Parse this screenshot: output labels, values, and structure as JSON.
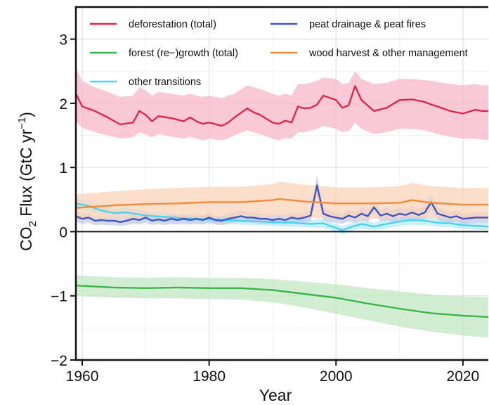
{
  "chart_data": {
    "type": "line",
    "xlabel": "Year",
    "ylabel": "CO2 Flux (GtC yr-1)",
    "ylabel_parts": {
      "pre": "CO",
      "sub": "2",
      "mid": " Flux (GtC yr",
      "sup": "−1",
      "post": ")"
    },
    "xlim": [
      1959,
      2024
    ],
    "ylim": [
      -2,
      3.5
    ],
    "x_ticks": [
      1960,
      1980,
      2000,
      2020
    ],
    "y_ticks": [
      3,
      2,
      1,
      0,
      -1,
      -2
    ],
    "y_tick_labels": [
      "3",
      "2",
      "1",
      "0",
      "−1",
      "−2"
    ],
    "grid": true,
    "legend_position": "top",
    "zero_line": true,
    "series": [
      {
        "name": "deforestation (total)",
        "color": "#e0254f",
        "band_color": "#f7b5c6",
        "x": [
          1959,
          1960,
          1962,
          1964,
          1966,
          1968,
          1969,
          1970,
          1971,
          1972,
          1974,
          1976,
          1977,
          1978,
          1979,
          1980,
          1982,
          1983,
          1984,
          1986,
          1987,
          1988,
          1990,
          1991,
          1992,
          1993,
          1994,
          1995,
          1996,
          1997,
          1998,
          2000,
          2001,
          2002,
          2003,
          2004,
          2006,
          2008,
          2010,
          2012,
          2014,
          2015,
          2016,
          2018,
          2020,
          2022,
          2023,
          2024
        ],
        "values": [
          2.15,
          1.95,
          1.88,
          1.78,
          1.67,
          1.7,
          1.88,
          1.82,
          1.72,
          1.8,
          1.77,
          1.72,
          1.78,
          1.72,
          1.68,
          1.7,
          1.65,
          1.7,
          1.78,
          1.92,
          1.86,
          1.82,
          1.7,
          1.68,
          1.73,
          1.7,
          1.95,
          1.92,
          1.93,
          1.98,
          2.12,
          2.05,
          1.93,
          1.97,
          2.27,
          2.05,
          1.88,
          1.93,
          2.05,
          2.06,
          2.02,
          1.98,
          1.95,
          1.88,
          1.84,
          1.9,
          1.88,
          1.88
        ],
        "lower": [
          1.72,
          1.62,
          1.55,
          1.5,
          1.45,
          1.47,
          1.55,
          1.52,
          1.47,
          1.52,
          1.48,
          1.45,
          1.48,
          1.45,
          1.42,
          1.45,
          1.42,
          1.45,
          1.5,
          1.58,
          1.55,
          1.52,
          1.45,
          1.42,
          1.46,
          1.45,
          1.55,
          1.55,
          1.57,
          1.6,
          1.65,
          1.6,
          1.55,
          1.57,
          1.7,
          1.6,
          1.52,
          1.55,
          1.6,
          1.6,
          1.58,
          1.55,
          1.52,
          1.48,
          1.45,
          1.45,
          1.43,
          1.43
        ],
        "upper": [
          2.55,
          2.35,
          2.25,
          2.18,
          2.1,
          2.12,
          2.25,
          2.2,
          2.12,
          2.18,
          2.15,
          2.12,
          2.15,
          2.12,
          2.1,
          2.12,
          2.08,
          2.12,
          2.15,
          2.28,
          2.25,
          2.22,
          2.15,
          2.12,
          2.15,
          2.12,
          2.3,
          2.3,
          2.32,
          2.35,
          2.4,
          2.38,
          2.3,
          2.32,
          2.5,
          2.38,
          2.3,
          2.32,
          2.38,
          2.38,
          2.36,
          2.35,
          2.33,
          2.3,
          2.28,
          2.3,
          2.28,
          2.28
        ]
      },
      {
        "name": "forest (re−)growth (total)",
        "color": "#3bb54a",
        "band_color": "#bfe6c1",
        "x": [
          1959,
          1965,
          1970,
          1975,
          1980,
          1985,
          1990,
          1995,
          2000,
          2005,
          2010,
          2015,
          2020,
          2024
        ],
        "values": [
          -0.84,
          -0.87,
          -0.88,
          -0.87,
          -0.88,
          -0.88,
          -0.91,
          -0.97,
          -1.03,
          -1.12,
          -1.2,
          -1.27,
          -1.31,
          -1.33
        ],
        "lower": [
          -1.0,
          -1.03,
          -1.04,
          -1.04,
          -1.05,
          -1.06,
          -1.1,
          -1.18,
          -1.28,
          -1.38,
          -1.48,
          -1.56,
          -1.62,
          -1.65
        ],
        "upper": [
          -0.68,
          -0.71,
          -0.72,
          -0.71,
          -0.72,
          -0.72,
          -0.74,
          -0.78,
          -0.82,
          -0.88,
          -0.93,
          -0.98,
          -1.01,
          -1.02
        ]
      },
      {
        "name": "other transitions",
        "color": "#4fd0ee",
        "band_color": "#b3ebf8",
        "x": [
          1959,
          1961,
          1963,
          1965,
          1967,
          1970,
          1973,
          1976,
          1980,
          1985,
          1990,
          1993,
          1996,
          1998,
          1999,
          2000,
          2001,
          2002,
          2004,
          2006,
          2008,
          2010,
          2012,
          2014,
          2016,
          2018,
          2020,
          2022,
          2024
        ],
        "values": [
          0.44,
          0.4,
          0.33,
          0.29,
          0.3,
          0.25,
          0.23,
          0.21,
          0.19,
          0.17,
          0.15,
          0.14,
          0.12,
          0.13,
          0.09,
          0.06,
          0.02,
          0.06,
          0.12,
          0.08,
          0.12,
          0.16,
          0.18,
          0.17,
          0.14,
          0.13,
          0.1,
          0.09,
          0.08
        ],
        "lower": [
          0.36,
          0.32,
          0.26,
          0.22,
          0.23,
          0.19,
          0.17,
          0.15,
          0.13,
          0.11,
          0.09,
          0.08,
          0.06,
          0.06,
          0.03,
          0.0,
          -0.04,
          0.0,
          0.05,
          0.02,
          0.05,
          0.09,
          0.11,
          0.1,
          0.08,
          0.07,
          0.04,
          0.03,
          0.02
        ],
        "upper": [
          0.52,
          0.48,
          0.4,
          0.36,
          0.37,
          0.31,
          0.29,
          0.27,
          0.25,
          0.23,
          0.21,
          0.2,
          0.18,
          0.2,
          0.15,
          0.12,
          0.08,
          0.12,
          0.19,
          0.14,
          0.19,
          0.23,
          0.25,
          0.24,
          0.2,
          0.19,
          0.16,
          0.15,
          0.14
        ]
      },
      {
        "name": "peat drainage & peat fires",
        "color": "#4055c4",
        "band_color": "#c4c9e6",
        "x": [
          1959,
          1960,
          1961,
          1962,
          1963,
          1964,
          1965,
          1966,
          1967,
          1968,
          1969,
          1970,
          1971,
          1972,
          1973,
          1974,
          1975,
          1976,
          1977,
          1978,
          1979,
          1980,
          1981,
          1982,
          1983,
          1984,
          1985,
          1986,
          1987,
          1988,
          1989,
          1990,
          1991,
          1992,
          1993,
          1994,
          1995,
          1996,
          1997,
          1998,
          1999,
          2000,
          2001,
          2002,
          2003,
          2004,
          2005,
          2006,
          2007,
          2008,
          2009,
          2010,
          2011,
          2012,
          2013,
          2014,
          2015,
          2016,
          2017,
          2018,
          2019,
          2020,
          2021,
          2022,
          2023,
          2024
        ],
        "values": [
          0.24,
          0.2,
          0.22,
          0.17,
          0.18,
          0.17,
          0.17,
          0.15,
          0.17,
          0.2,
          0.18,
          0.22,
          0.17,
          0.19,
          0.17,
          0.2,
          0.18,
          0.2,
          0.18,
          0.2,
          0.18,
          0.22,
          0.18,
          0.17,
          0.2,
          0.22,
          0.24,
          0.22,
          0.22,
          0.2,
          0.2,
          0.18,
          0.2,
          0.18,
          0.22,
          0.2,
          0.22,
          0.25,
          0.72,
          0.28,
          0.24,
          0.22,
          0.2,
          0.25,
          0.22,
          0.28,
          0.24,
          0.38,
          0.25,
          0.28,
          0.24,
          0.28,
          0.26,
          0.3,
          0.26,
          0.3,
          0.46,
          0.28,
          0.25,
          0.22,
          0.24,
          0.2,
          0.21,
          0.22,
          0.22,
          0.22
        ],
        "lower": [
          0.15,
          0.12,
          0.14,
          0.1,
          0.11,
          0.1,
          0.1,
          0.09,
          0.1,
          0.12,
          0.11,
          0.14,
          0.1,
          0.12,
          0.1,
          0.12,
          0.11,
          0.12,
          0.11,
          0.12,
          0.11,
          0.14,
          0.11,
          0.1,
          0.12,
          0.14,
          0.15,
          0.14,
          0.14,
          0.12,
          0.12,
          0.11,
          0.12,
          0.11,
          0.14,
          0.12,
          0.14,
          0.16,
          0.55,
          0.18,
          0.15,
          0.14,
          0.12,
          0.16,
          0.14,
          0.18,
          0.15,
          0.28,
          0.16,
          0.18,
          0.15,
          0.18,
          0.17,
          0.2,
          0.17,
          0.2,
          0.34,
          0.18,
          0.16,
          0.14,
          0.15,
          0.12,
          0.13,
          0.14,
          0.14,
          0.14
        ],
        "upper": [
          0.33,
          0.28,
          0.3,
          0.24,
          0.25,
          0.24,
          0.24,
          0.22,
          0.24,
          0.28,
          0.25,
          0.3,
          0.24,
          0.26,
          0.24,
          0.28,
          0.25,
          0.28,
          0.25,
          0.28,
          0.25,
          0.3,
          0.25,
          0.24,
          0.28,
          0.3,
          0.33,
          0.3,
          0.3,
          0.28,
          0.28,
          0.25,
          0.28,
          0.25,
          0.3,
          0.28,
          0.3,
          0.34,
          0.88,
          0.38,
          0.33,
          0.3,
          0.28,
          0.34,
          0.3,
          0.38,
          0.33,
          0.48,
          0.34,
          0.38,
          0.33,
          0.38,
          0.35,
          0.4,
          0.35,
          0.4,
          0.58,
          0.38,
          0.34,
          0.3,
          0.33,
          0.28,
          0.29,
          0.3,
          0.3,
          0.3
        ]
      },
      {
        "name": "wood harvest & other management",
        "color": "#f58a3a",
        "band_color": "#fbd3b5",
        "x": [
          1959,
          1965,
          1970,
          1975,
          1980,
          1985,
          1990,
          1991,
          1995,
          2000,
          2005,
          2010,
          2012,
          2015,
          2020,
          2024
        ],
        "values": [
          0.37,
          0.41,
          0.43,
          0.44,
          0.46,
          0.46,
          0.49,
          0.51,
          0.47,
          0.44,
          0.44,
          0.45,
          0.49,
          0.45,
          0.42,
          0.42
        ],
        "lower": [
          0.18,
          0.2,
          0.21,
          0.21,
          0.22,
          0.22,
          0.23,
          0.24,
          0.22,
          0.2,
          0.2,
          0.21,
          0.23,
          0.21,
          0.19,
          0.19
        ],
        "upper": [
          0.58,
          0.63,
          0.66,
          0.68,
          0.7,
          0.7,
          0.74,
          0.78,
          0.73,
          0.69,
          0.69,
          0.71,
          0.76,
          0.71,
          0.68,
          0.68
        ]
      }
    ],
    "legend_order": [
      0,
      3,
      1,
      4,
      2
    ]
  }
}
